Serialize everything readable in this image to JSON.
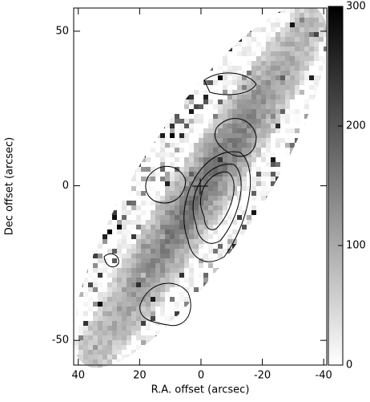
{
  "chart_data": {
    "type": "image",
    "x_label": "R.A. offset (arcsec)",
    "y_label": "Dec offset (arcsec)",
    "xlim": [
      41.5,
      -41
    ],
    "xticks": [
      40,
      20,
      0,
      -20,
      -40
    ],
    "ylim": [
      -58,
      57.5
    ],
    "yticks": [
      -50,
      0,
      50
    ],
    "colorbar": {
      "lim": [
        0,
        300
      ],
      "ticks": [
        0,
        100,
        200,
        300
      ]
    }
  }
}
